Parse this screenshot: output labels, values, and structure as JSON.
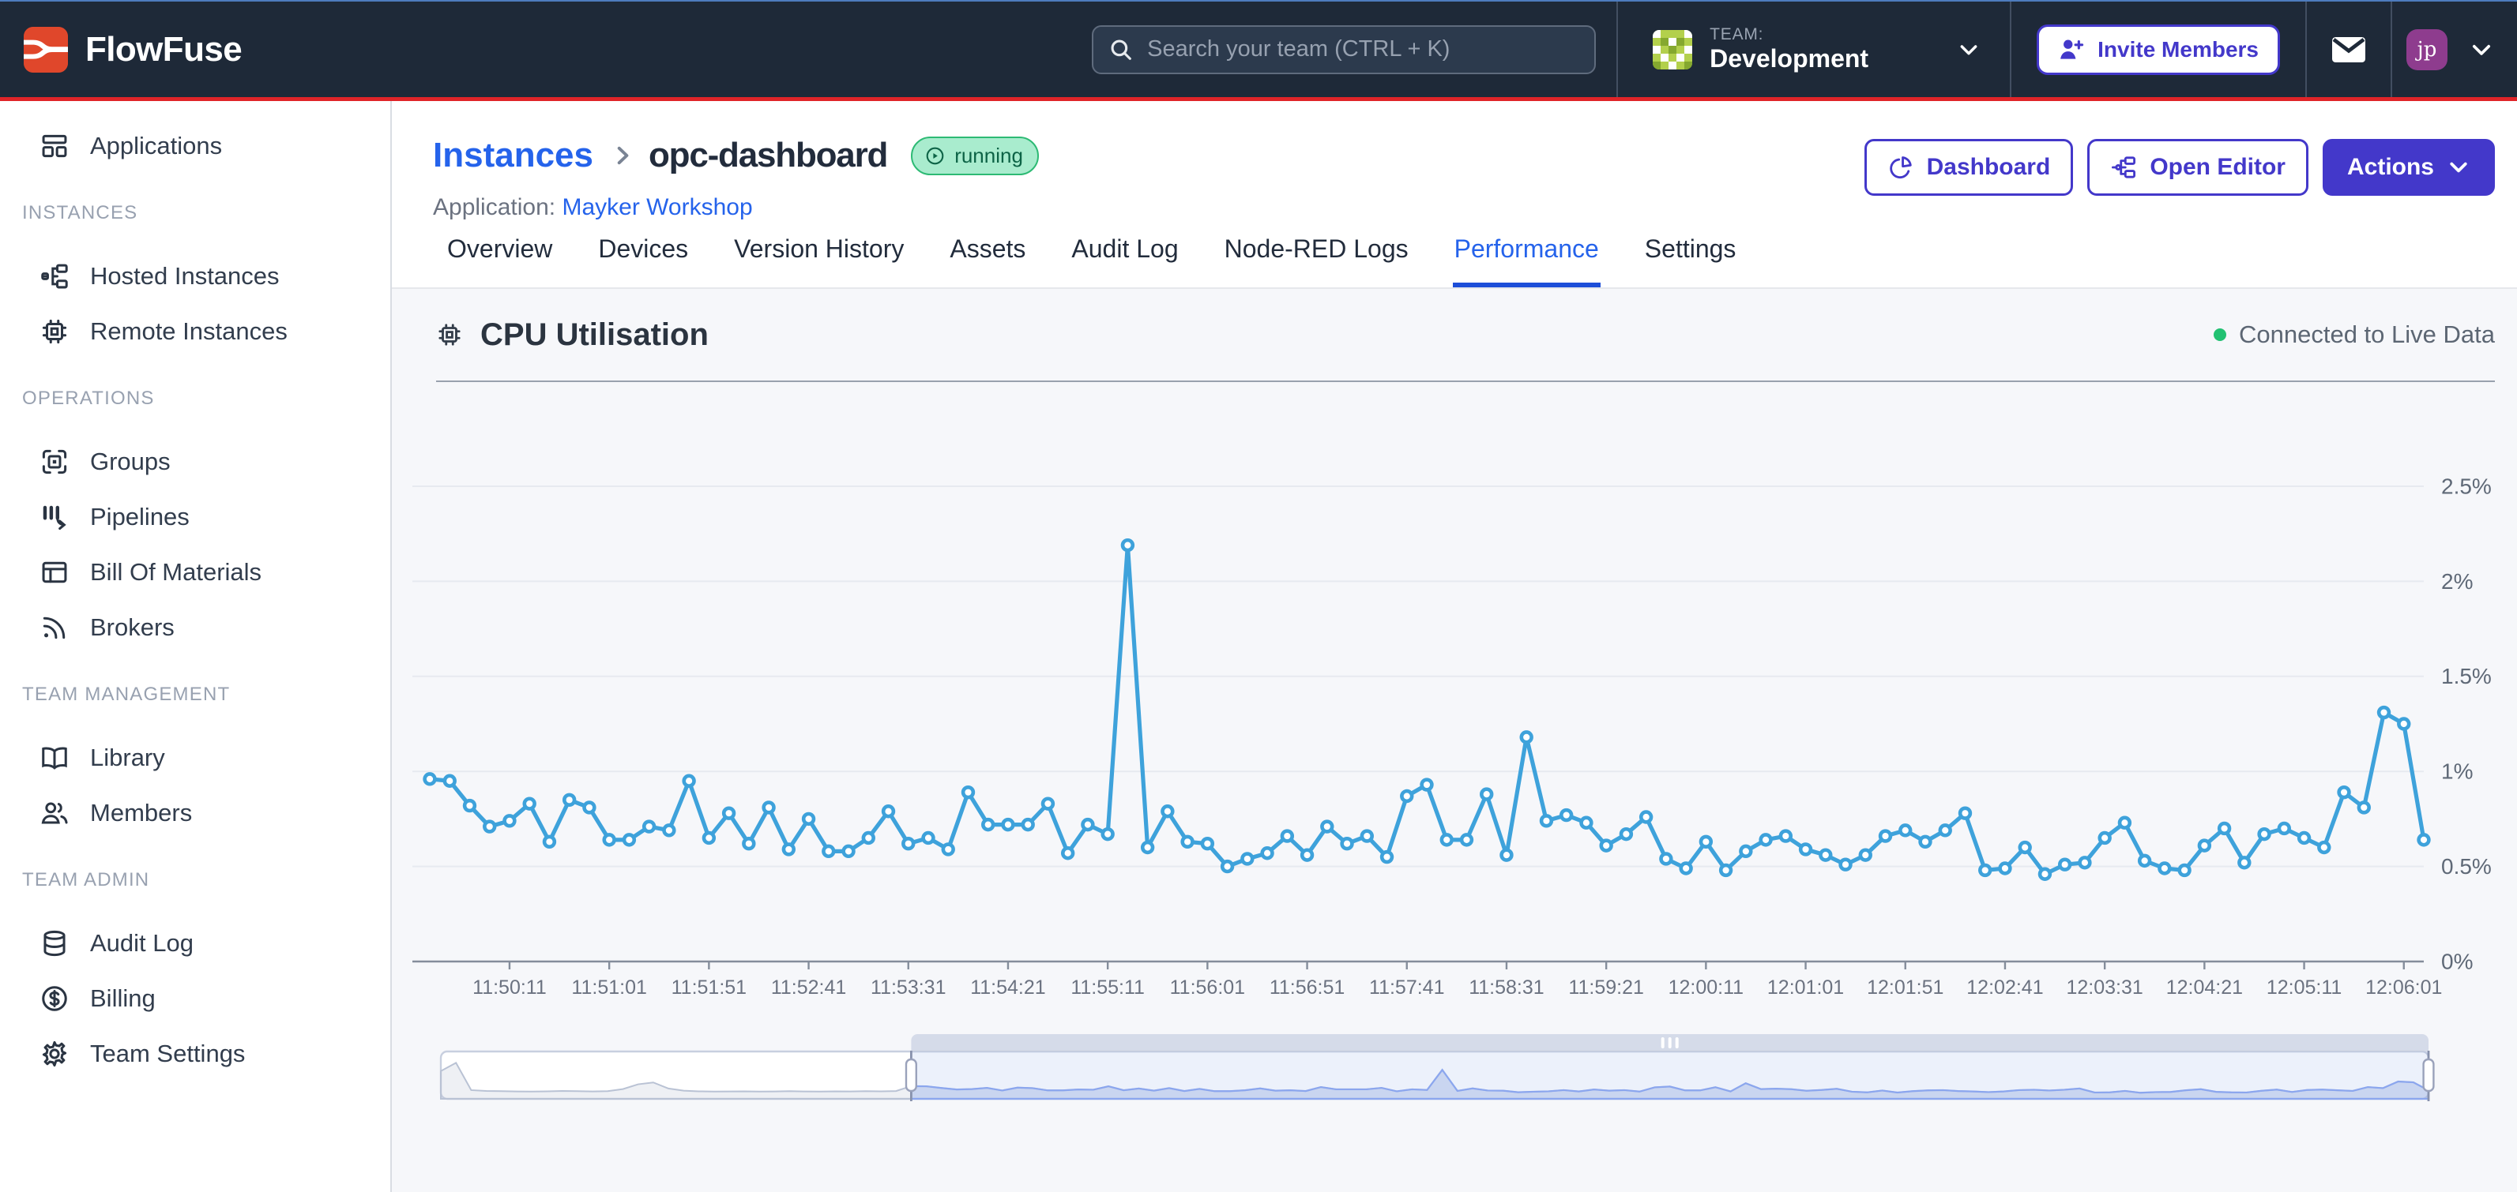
{
  "topbar": {
    "logo_text": "FlowFuse",
    "search": {
      "placeholder": "Search your team (CTRL + K)"
    },
    "team": {
      "label": "TEAM:",
      "name": "Development"
    },
    "invite_button": {
      "label": "Invite Members"
    },
    "user": {
      "initials": "jp"
    }
  },
  "sidebar": {
    "sections": [
      {
        "header": null,
        "items": [
          {
            "label": "Applications",
            "icon": "applications-icon"
          }
        ]
      },
      {
        "header": "INSTANCES",
        "items": [
          {
            "label": "Hosted Instances",
            "icon": "hosted-instances-icon"
          },
          {
            "label": "Remote Instances",
            "icon": "remote-instances-icon"
          }
        ]
      },
      {
        "header": "OPERATIONS",
        "items": [
          {
            "label": "Groups",
            "icon": "groups-icon"
          },
          {
            "label": "Pipelines",
            "icon": "pipelines-icon"
          },
          {
            "label": "Bill Of Materials",
            "icon": "bill-of-materials-icon"
          },
          {
            "label": "Brokers",
            "icon": "brokers-icon"
          }
        ]
      },
      {
        "header": "TEAM MANAGEMENT",
        "items": [
          {
            "label": "Library",
            "icon": "library-icon"
          },
          {
            "label": "Members",
            "icon": "members-icon"
          }
        ]
      },
      {
        "header": "TEAM ADMIN",
        "items": [
          {
            "label": "Audit Log",
            "icon": "audit-log-icon"
          },
          {
            "label": "Billing",
            "icon": "billing-icon"
          },
          {
            "label": "Team Settings",
            "icon": "team-settings-icon"
          }
        ]
      }
    ]
  },
  "page": {
    "breadcrumb": {
      "parent": "Instances",
      "current": "opc-dashboard"
    },
    "status_badge": "running",
    "application": {
      "label": "Application:",
      "name": "Mayker Workshop"
    },
    "actions": {
      "dashboard": "Dashboard",
      "open_editor": "Open Editor",
      "actions": "Actions"
    },
    "tabs": [
      {
        "label": "Overview",
        "active": false
      },
      {
        "label": "Devices",
        "active": false
      },
      {
        "label": "Version History",
        "active": false
      },
      {
        "label": "Assets",
        "active": false
      },
      {
        "label": "Audit Log",
        "active": false
      },
      {
        "label": "Node-RED Logs",
        "active": false
      },
      {
        "label": "Performance",
        "active": true
      },
      {
        "label": "Settings",
        "active": false
      }
    ]
  },
  "chart_data": {
    "type": "line",
    "title": "CPU Utilisation",
    "status_text": "Connected to Live Data",
    "ylabel": "",
    "xlabel": "",
    "ylim": [
      0,
      2.75
    ],
    "y_tick_labels": [
      "0%",
      "0.5%",
      "1%",
      "1.5%",
      "2%",
      "2.5%"
    ],
    "y_tick_values": [
      0,
      0.5,
      1,
      1.5,
      2,
      2.5
    ],
    "grid": true,
    "legend": false,
    "x": [
      "11:49:31",
      "11:49:41",
      "11:49:51",
      "11:50:01",
      "11:50:11",
      "11:50:21",
      "11:50:31",
      "11:50:41",
      "11:50:51",
      "11:51:01",
      "11:51:11",
      "11:51:21",
      "11:51:31",
      "11:51:41",
      "11:51:51",
      "11:52:01",
      "11:52:11",
      "11:52:21",
      "11:52:31",
      "11:52:41",
      "11:52:51",
      "11:53:01",
      "11:53:11",
      "11:53:21",
      "11:53:31",
      "11:53:41",
      "11:53:51",
      "11:54:01",
      "11:54:11",
      "11:54:21",
      "11:54:31",
      "11:54:41",
      "11:54:51",
      "11:55:01",
      "11:55:11",
      "11:55:21",
      "11:55:31",
      "11:55:41",
      "11:55:51",
      "11:56:01",
      "11:56:11",
      "11:56:21",
      "11:56:31",
      "11:56:41",
      "11:56:51",
      "11:57:01",
      "11:57:11",
      "11:57:21",
      "11:57:31",
      "11:57:41",
      "11:57:51",
      "11:58:01",
      "11:58:11",
      "11:58:21",
      "11:58:31",
      "11:58:41",
      "11:58:51",
      "11:59:01",
      "11:59:11",
      "11:59:21",
      "11:59:31",
      "11:59:41",
      "11:59:51",
      "12:00:01",
      "12:00:11",
      "12:00:21",
      "12:00:31",
      "12:00:41",
      "12:00:51",
      "12:01:01",
      "12:01:11",
      "12:01:21",
      "12:01:31",
      "12:01:41",
      "12:01:51",
      "12:02:01",
      "12:02:11",
      "12:02:21",
      "12:02:31",
      "12:02:41",
      "12:02:51",
      "12:03:01",
      "12:03:11",
      "12:03:21",
      "12:03:31",
      "12:03:41",
      "12:03:51",
      "12:04:01",
      "12:04:11",
      "12:04:21",
      "12:04:31",
      "12:04:41",
      "12:04:51",
      "12:05:01",
      "12:05:11",
      "12:05:21",
      "12:05:31",
      "12:05:41",
      "12:05:51",
      "12:06:01",
      "12:06:11"
    ],
    "values": [
      0.96,
      0.95,
      0.82,
      0.71,
      0.74,
      0.83,
      0.63,
      0.85,
      0.81,
      0.64,
      0.64,
      0.71,
      0.69,
      0.95,
      0.65,
      0.78,
      0.62,
      0.81,
      0.59,
      0.75,
      0.58,
      0.58,
      0.65,
      0.79,
      0.62,
      0.65,
      0.59,
      0.89,
      0.72,
      0.72,
      0.72,
      0.83,
      0.57,
      0.72,
      0.67,
      2.19,
      0.6,
      0.79,
      0.63,
      0.62,
      0.5,
      0.54,
      0.57,
      0.66,
      0.56,
      0.71,
      0.62,
      0.66,
      0.55,
      0.87,
      0.93,
      0.64,
      0.64,
      0.88,
      0.56,
      1.18,
      0.74,
      0.77,
      0.73,
      0.61,
      0.67,
      0.76,
      0.54,
      0.49,
      0.63,
      0.48,
      0.58,
      0.64,
      0.66,
      0.59,
      0.56,
      0.51,
      0.56,
      0.66,
      0.69,
      0.63,
      0.69,
      0.78,
      0.48,
      0.49,
      0.6,
      0.46,
      0.51,
      0.52,
      0.65,
      0.73,
      0.53,
      0.49,
      0.48,
      0.61,
      0.7,
      0.52,
      0.67,
      0.7,
      0.65,
      0.6,
      0.89,
      0.81,
      1.31,
      1.25,
      0.64
    ],
    "x_tick_labels": [
      "11:50:11",
      "11:51:01",
      "11:51:51",
      "11:52:41",
      "11:53:31",
      "11:54:21",
      "11:55:11",
      "11:56:01",
      "11:56:51",
      "11:57:41",
      "11:58:31",
      "11:59:21",
      "12:00:11",
      "12:01:01",
      "12:01:51",
      "12:02:41",
      "12:03:31",
      "12:04:21",
      "12:05:11",
      "12:06:01"
    ],
    "unit": "%",
    "navigator": {
      "selected_range": [
        "11:49:31",
        "12:06:11"
      ],
      "prefix_x": [
        "11:44:21",
        "11:44:31",
        "11:44:41",
        "11:44:51",
        "11:45:01",
        "11:45:11",
        "11:45:21",
        "11:45:31",
        "11:45:41",
        "11:45:51",
        "11:46:01",
        "11:46:11",
        "11:46:21",
        "11:46:31",
        "11:46:41",
        "11:46:51",
        "11:47:01",
        "11:47:11",
        "11:47:21",
        "11:47:31",
        "11:47:41",
        "11:47:51",
        "11:48:01",
        "11:48:11",
        "11:48:21",
        "11:48:31",
        "11:48:41",
        "11:48:51",
        "11:49:01",
        "11:49:11",
        "11:49:21"
      ],
      "prefix_values": [
        2.1,
        2.72,
        0.66,
        0.6,
        0.58,
        0.56,
        0.55,
        0.57,
        0.6,
        0.58,
        0.56,
        0.58,
        0.74,
        1.1,
        1.24,
        0.78,
        0.62,
        0.57,
        0.55,
        0.56,
        0.57,
        0.55,
        0.56,
        0.58,
        0.56,
        0.55,
        0.57,
        0.56,
        0.58,
        0.57,
        0.59
      ]
    }
  },
  "colors": {
    "navbar_bg": "#1e2938",
    "top_strip": "#4d7cbe",
    "accent_red": "#e02428",
    "brand_orange": "#e0472b",
    "indigo": "#4338ca",
    "link_blue": "#2563eb",
    "tab_underline": "#1d4ed8",
    "series_blue": "#3ea2db",
    "running_bg": "#a9ecce",
    "running_border": "#2dba74",
    "running_text": "#0d6346",
    "live_dot": "#22c172",
    "avatar_purple": "#8e3c8e"
  }
}
